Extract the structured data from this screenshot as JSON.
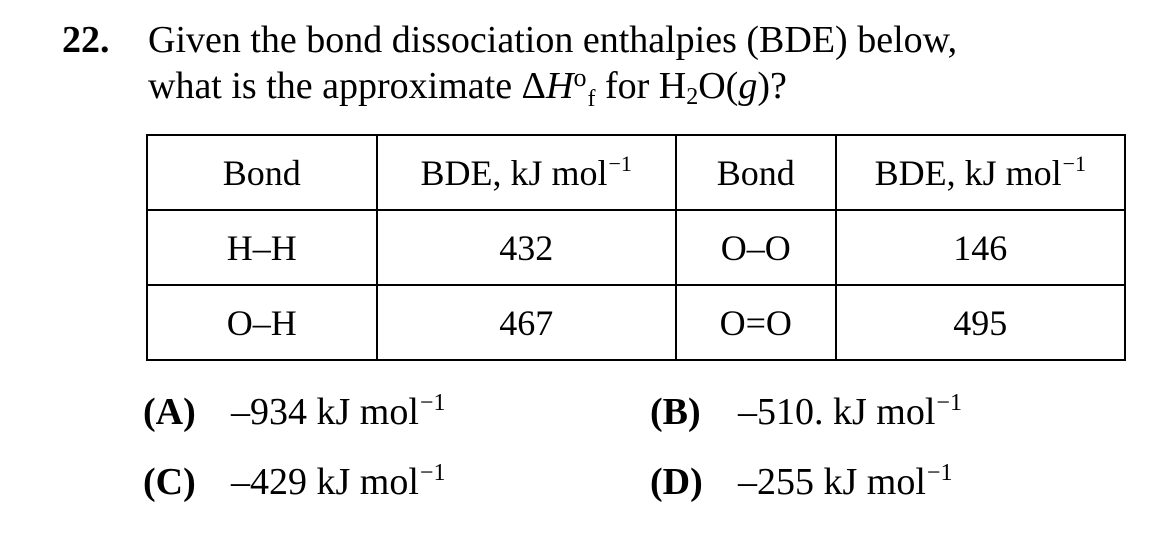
{
  "question": {
    "number": "22.",
    "line1": "Given the bond dissociation enthalpies (BDE) below,",
    "line2_pre": "what is the approximate Δ",
    "line2_H": "H",
    "line2_deg": "o",
    "line2_f": "f",
    "line2_mid": " for H",
    "line2_sub2": "2",
    "line2_O": "O(",
    "line2_g": "g",
    "line2_end": ")?"
  },
  "table": {
    "headers": [
      "Bond",
      "BDE, kJ mol",
      "Bond",
      "BDE, kJ mol"
    ],
    "unit_exp": "−1",
    "rows": [
      [
        "H–H",
        "432",
        "O–O",
        "146"
      ],
      [
        "O–H",
        "467",
        "O=O",
        "495"
      ]
    ]
  },
  "choices": [
    {
      "label": "(A)",
      "value": "–934 kJ mol",
      "exp": "−1"
    },
    {
      "label": "(B)",
      "value": "–510. kJ mol",
      "exp": "−1"
    },
    {
      "label": "(C)",
      "value": "–429 kJ mol",
      "exp": "−1"
    },
    {
      "label": "(D)",
      "value": "–255 kJ mol",
      "exp": "−1"
    }
  ]
}
